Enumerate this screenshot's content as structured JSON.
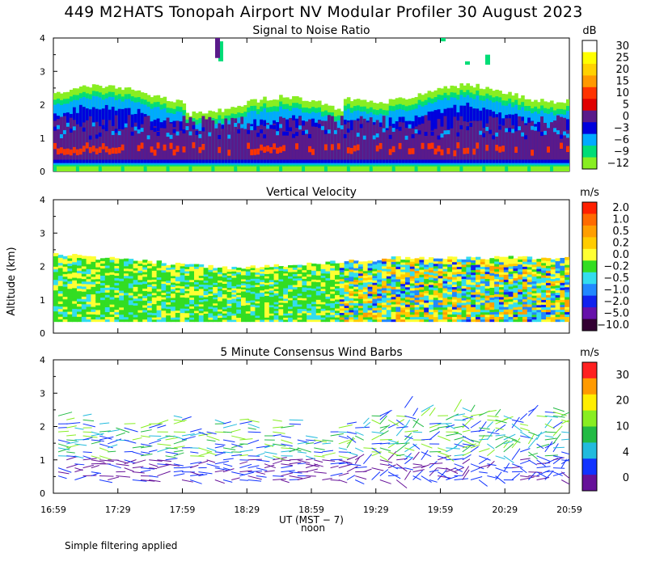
{
  "title": "449 M2HATS Tonopah Airport NV Modular Profiler 30 August 2023",
  "footnote": "Simple filtering applied",
  "chart_data": [
    {
      "type": "heatmap",
      "title": "Signal to Noise Ratio",
      "ylabel": "",
      "ylim": [
        0,
        4
      ],
      "yticks": [
        "0",
        "1",
        "2",
        "3",
        "4"
      ],
      "colorbar_unit": "dB",
      "colorbar_labels": [
        "30",
        "25",
        "20",
        "15",
        "10",
        "5",
        "0",
        "−3",
        "−6",
        "−9",
        "−12"
      ],
      "colorbar_colors": [
        "#ffffff",
        "#ffff00",
        "#ffd200",
        "#ff9900",
        "#ff3300",
        "#e00000",
        "#5a1a8a",
        "#0000dd",
        "#00aaff",
        "#00dd77",
        "#88ee22"
      ]
    },
    {
      "type": "heatmap",
      "title": "Vertical Velocity",
      "ylabel": "Altitude (km)",
      "ylim": [
        0,
        4
      ],
      "yticks": [
        "0",
        "1",
        "2",
        "3",
        "4"
      ],
      "colorbar_unit": "m/s",
      "colorbar_labels": [
        "2.0",
        "1.0",
        "0.5",
        "0.2",
        "0.0",
        "−0.2",
        "−0.5",
        "−1.0",
        "−2.0",
        "−5.0",
        "−10.0"
      ],
      "colorbar_colors": [
        "#ff2000",
        "#ff6a00",
        "#ff9e00",
        "#ffcc00",
        "#ffff33",
        "#33dd22",
        "#33ddee",
        "#2288ff",
        "#1122ee",
        "#6611aa",
        "#330033"
      ]
    },
    {
      "type": "scatter",
      "title": "5 Minute Consensus Wind Barbs",
      "ylabel": "",
      "ylim": [
        0,
        4
      ],
      "yticks": [
        "0",
        "1",
        "2",
        "3",
        "4"
      ],
      "colorbar_unit": "m/s",
      "colorbar_labels": [
        "30",
        "20",
        "10",
        "4",
        "0"
      ],
      "colorbar_colors": [
        "#ff2020",
        "#ff9a00",
        "#ffee00",
        "#88ee22",
        "#22bb44",
        "#22bbdd",
        "#1133ff",
        "#661199"
      ]
    }
  ],
  "xaxis": {
    "ticks": [
      "16:59",
      "17:29",
      "17:59",
      "18:29",
      "18:59",
      "19:29",
      "19:59",
      "20:29",
      "20:59"
    ],
    "label": "UT  (MST − 7)",
    "noon_label": "noon"
  }
}
